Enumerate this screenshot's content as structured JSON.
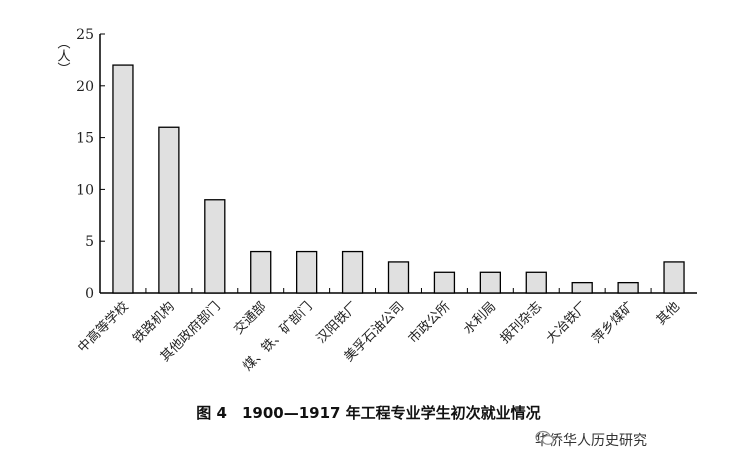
{
  "chart_data": {
    "type": "bar",
    "title": "图 4　1900—1917 年工程专业学生初次就业情况",
    "ylabel": "（人）",
    "xlabel": "",
    "ylim": [
      0,
      25
    ],
    "yticks": [
      0,
      5,
      10,
      15,
      20,
      25
    ],
    "grid": false,
    "categories": [
      "中高等学校",
      "铁路机构",
      "其他政府部门",
      "交通部",
      "煤、铁、矿部门",
      "汉阳铁厂",
      "美孚石油公司",
      "市政公所",
      "水利局",
      "报刊杂志",
      "大冶铁厂",
      "萍乡煤矿",
      "其他"
    ],
    "values": [
      22,
      16,
      9,
      4,
      4,
      4,
      3,
      2,
      2,
      2,
      1,
      1,
      3
    ],
    "bar_color": "#e0e0e0"
  },
  "watermark": "华侨华人历史研究"
}
